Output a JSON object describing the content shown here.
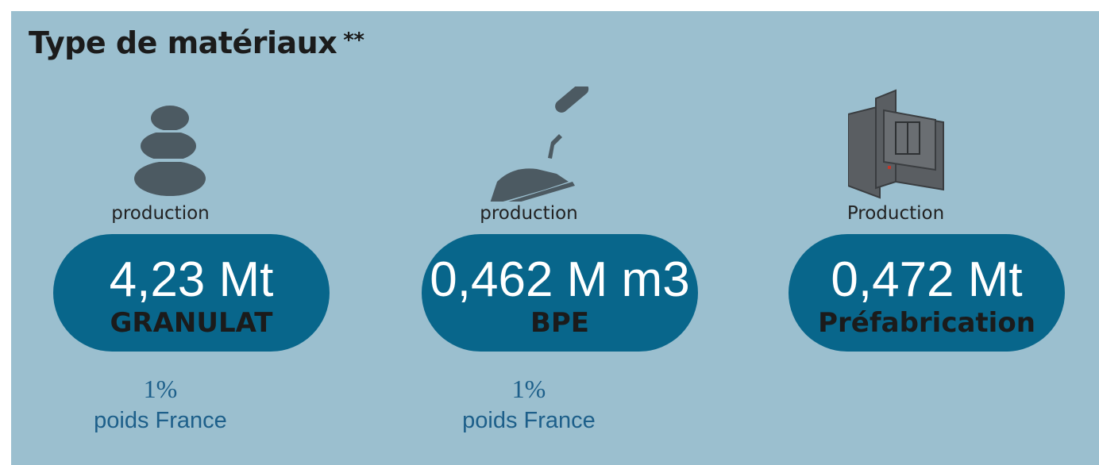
{
  "header": {
    "title": "Type de matériaux",
    "note": "**"
  },
  "cards": [
    {
      "label": "production",
      "value": "4,23 Mt",
      "name": "GRANULAT",
      "share": "1%",
      "share_label": "poids France"
    },
    {
      "label": "production",
      "value": "0,462 M m3",
      "name": "BPE",
      "share": "1%",
      "share_label": "poids France"
    },
    {
      "label": "Production",
      "value": "0,472 Mt",
      "name": "Préfabrication"
    }
  ]
}
